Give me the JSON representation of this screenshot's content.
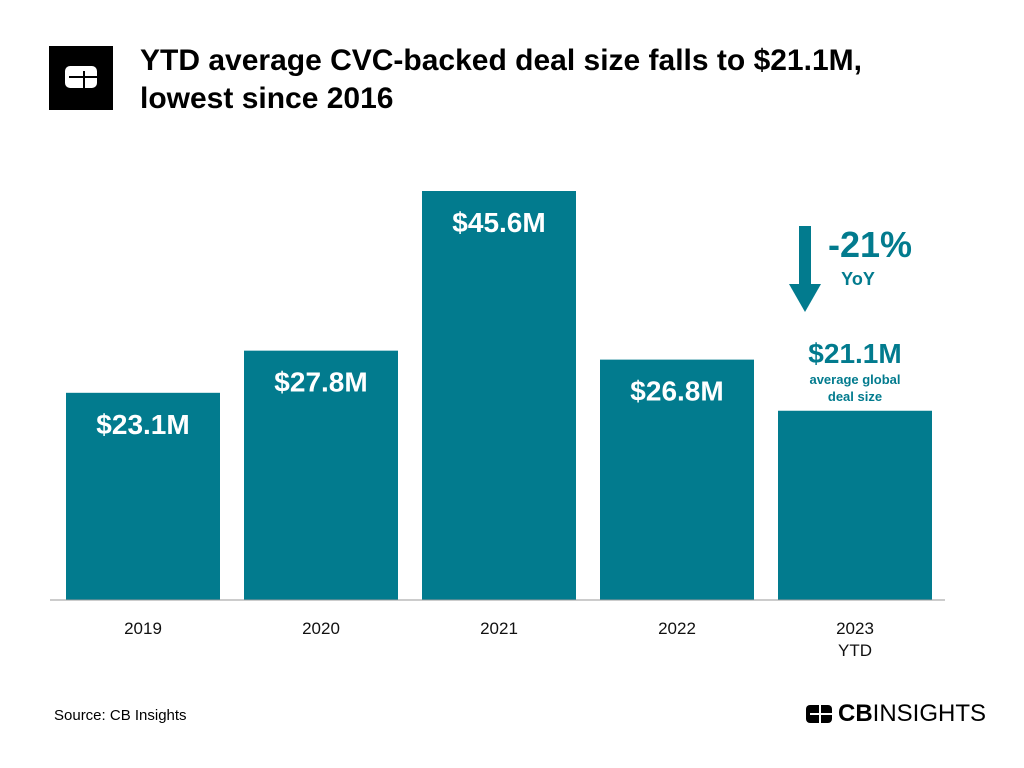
{
  "title": "YTD average CVC-backed deal size falls to $21.1M, lowest since 2016",
  "source": "Source: CB Insights",
  "brand": {
    "bold": "CB",
    "regular": "INSIGHTS"
  },
  "colors": {
    "bar": "#027b8e",
    "annotation": "#027b8e"
  },
  "annotation": {
    "change": "-21%",
    "period": "YoY",
    "value": "$21.1M",
    "note_line1": "average global",
    "note_line2": "deal size",
    "icon": "down-arrow-icon"
  },
  "chart_data": {
    "type": "bar",
    "categories": [
      [
        "2019"
      ],
      [
        "2020"
      ],
      [
        "2021"
      ],
      [
        "2022"
      ],
      [
        "2023",
        "YTD"
      ]
    ],
    "values": [
      23.1,
      27.8,
      45.6,
      26.8,
      21.1
    ],
    "labels": [
      "$23.1M",
      "$27.8M",
      "$45.6M",
      "$26.8M",
      ""
    ],
    "ylim": [
      0,
      45.6
    ],
    "grid": false,
    "xlabel": "",
    "ylabel": ""
  }
}
